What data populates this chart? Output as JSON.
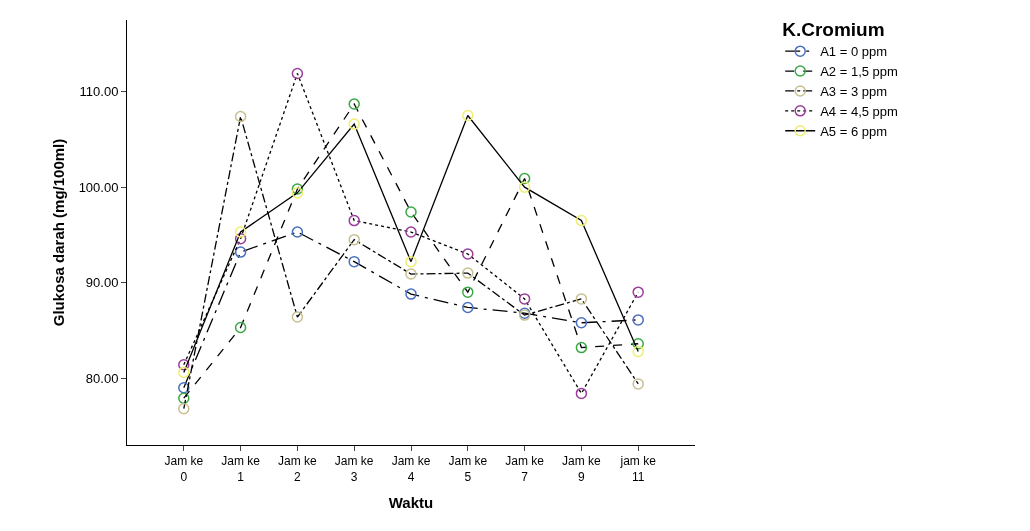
{
  "chart_data": {
    "type": "line",
    "xlabel": "Waktu",
    "ylabel": "Glukosa darah (mg/100ml)",
    "legend_title": "K.Cromium",
    "categories": [
      "Jam ke 0",
      "Jam ke 1",
      "Jam ke 2",
      "Jam ke 3",
      "Jam ke 4",
      "Jam ke 5",
      "Jam ke 7",
      "Jam ke 9",
      "jam ke 11"
    ],
    "ylim": [
      73,
      117.5
    ],
    "yticks": [
      {
        "value": 80,
        "label": "80.00"
      },
      {
        "value": 90,
        "label": "90.00"
      },
      {
        "value": 100,
        "label": "100.00"
      },
      {
        "value": 110,
        "label": "110.00"
      }
    ],
    "grid": false,
    "legend": "top right",
    "marker": "circle",
    "series": [
      {
        "name": "A1 = 0 ppm",
        "color": "#4a6fc0",
        "line_style": "longdashdot",
        "values": [
          79.0,
          93.2,
          95.3,
          92.2,
          88.8,
          87.4,
          86.8,
          85.8,
          86.1
        ]
      },
      {
        "name": "A2 = 1,5 ppm",
        "color": "#3aa845",
        "line_style": "dashed",
        "values": [
          77.9,
          85.3,
          99.8,
          108.7,
          97.4,
          89.0,
          100.9,
          83.2,
          83.6
        ]
      },
      {
        "name": "A3 = 3 ppm",
        "color": "#c8c090",
        "line_style": "dashdot",
        "values": [
          76.8,
          107.4,
          86.4,
          94.5,
          90.9,
          91.0,
          86.6,
          88.3,
          79.4
        ]
      },
      {
        "name": "A4 = 4,5 ppm",
        "color": "#9a3d9a",
        "line_style": "dotted",
        "values": [
          81.4,
          94.6,
          111.9,
          96.5,
          95.3,
          93.0,
          88.3,
          78.4,
          89.0
        ]
      },
      {
        "name": "A5 = 6 ppm",
        "color": "#eeee70",
        "line_style": "solid",
        "values": [
          80.6,
          95.3,
          99.4,
          106.6,
          92.2,
          107.5,
          100.0,
          96.5,
          82.8
        ]
      }
    ]
  }
}
